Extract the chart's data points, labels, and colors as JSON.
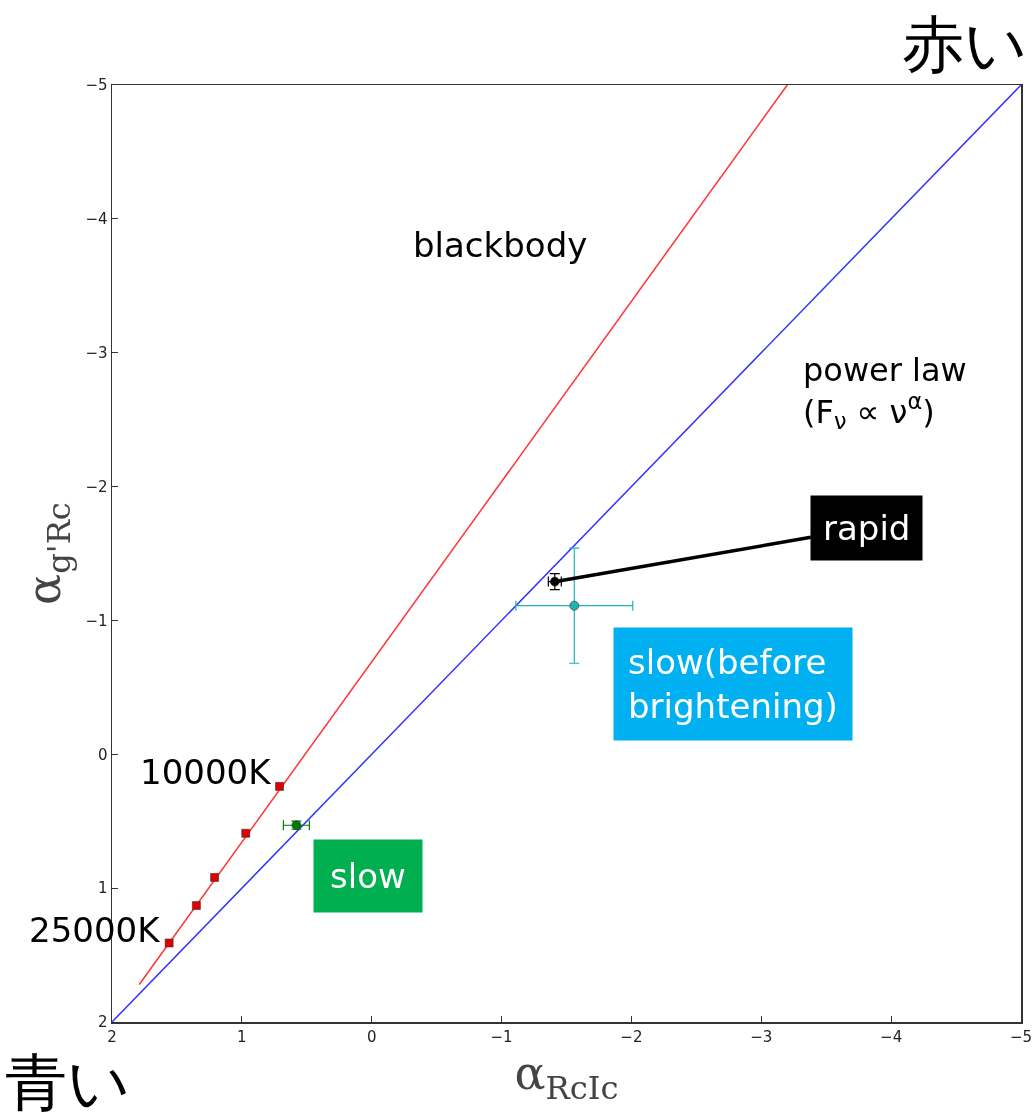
{
  "chart_data": {
    "type": "scatter",
    "xlabel": "α$_{RcIc}$",
    "ylabel": "α$_{g'Rc}$",
    "xlim": [
      2,
      -5
    ],
    "xticks": [
      2,
      1,
      0,
      -1,
      -2,
      -3,
      -4,
      -5
    ],
    "ylim": [
      2,
      -5
    ],
    "yticks": [
      2,
      1,
      0,
      -1,
      -2,
      -3,
      -4,
      -5
    ],
    "grid": false,
    "line_style": "solid",
    "series": [
      {
        "type": "line",
        "color": "#ff3333",
        "x": [
          1.79,
          -3.2
        ],
        "values": [
          1.72,
          -5
        ],
        "marker": "none"
      },
      {
        "type": "line",
        "color": "#3333ff",
        "x": [
          2,
          -5
        ],
        "values": [
          2,
          -5
        ],
        "marker": "none"
      },
      {
        "color": "#e00000",
        "marker": "square",
        "x": [
          0.71,
          0.97,
          1.21,
          1.35,
          1.56
        ],
        "values": [
          0.24,
          0.59,
          0.92,
          1.13,
          1.41
        ]
      },
      {
        "color": "#007a00",
        "x": [
          0.58
        ],
        "values": [
          0.53
        ],
        "errors": [
          0.03
        ],
        "xerrors": [
          0.1
        ]
      },
      {
        "color": "#000000",
        "x": [
          -1.41
        ],
        "values": [
          -1.29
        ],
        "errors": [
          0.06
        ],
        "xerrors": [
          0.05
        ]
      },
      {
        "color": "#1fb5b5",
        "x": [
          -1.56
        ],
        "values": [
          -1.11
        ],
        "errors": [
          0.43
        ],
        "xerrors": [
          0.45
        ]
      }
    ],
    "annotations": [
      "blackbody",
      "power law\n(F$_{ν}$ ∝ ν$^{α}$)",
      {
        "text": "10000K",
        "x": 0.71,
        "y": 0.24
      },
      {
        "text": "25000K",
        "x": 1.56,
        "y": 1.41
      },
      {
        "text": "rapid",
        "x": -1.41,
        "y": -1.29
      },
      {
        "text": "slow(before\nbrightening)",
        "x": -1.56,
        "y": -1.11
      },
      {
        "text": "slow",
        "x": 0.58,
        "y": 0.53
      },
      "赤い",
      "青い"
    ]
  }
}
